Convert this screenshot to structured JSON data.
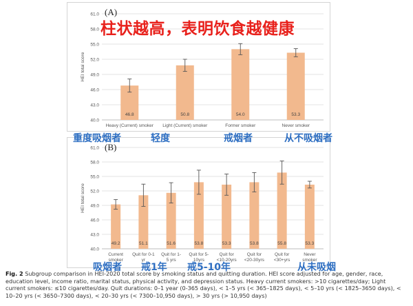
{
  "overlay_title": "柱状越高，表明饮食越健康",
  "annotations_a": [
    "重度吸烟者",
    "轻度",
    "戒烟者",
    "从不吸烟者"
  ],
  "annotations_b": [
    "吸烟者",
    "戒1年",
    "戒5-10年",
    "从未吸烟"
  ],
  "caption": {
    "label": "Fig. 2",
    "text": "Subgroup comparison in HEI-2020 total score by smoking status and quitting duration. HEI score adjusted for age, gender, race, education level, income ratio, marital status, physical activity, and depression status. Heavy current smokers: >10 cigarettes/day; Light current smokers: ≤10 cigarettes/day. Quit durations: 0–1 year (0-365 days), < 1–5 yrs (< 365–1825 days), < 5–10 yrs (< 1825–3650 days), < 10–20 yrs (< 3650–7300 days), < 20–30 yrs (< 7300–10,950 days), > 30 yrs (> 10,950 days)"
  },
  "colors": {
    "bar": "#f2b98e",
    "error": "#555555",
    "grid": "#e3e3e3"
  },
  "chart_data": [
    {
      "type": "bar",
      "panel": "(A)",
      "ylabel": "HEI total score",
      "ylim": [
        40,
        61
      ],
      "yticks": [
        "40.0",
        "43.0",
        "46.0",
        "49.0",
        "52.0",
        "55.0",
        "58.0",
        "61.0"
      ],
      "categories": [
        "Heavy (Current) smoker",
        "Light (Current) smoker",
        "Former smoker",
        "Never smoker"
      ],
      "values": [
        46.8,
        50.8,
        54.0,
        53.3
      ],
      "value_labels": [
        "46.8",
        "50.8",
        "54.0",
        "53.3"
      ],
      "error": [
        1.3,
        1.2,
        1.1,
        0.8
      ]
    },
    {
      "type": "bar",
      "panel": "(B)",
      "ylabel": "HEI total score",
      "ylim": [
        40,
        61
      ],
      "yticks": [
        "40.0",
        "43.0",
        "46.0",
        "49.0",
        "52.0",
        "55.0",
        "58.0",
        "61.0"
      ],
      "categories": [
        [
          "Current",
          "smoker"
        ],
        [
          "Quit for 0-1",
          "yr"
        ],
        [
          "Quit for 1-",
          "5 yrs"
        ],
        [
          "Quit for 5-",
          "10yrs"
        ],
        [
          "Quit for",
          "<10-20yrs"
        ],
        [
          "Quit for",
          "<20-30yrs"
        ],
        [
          "Quit for",
          "<30+yrs"
        ],
        [
          "Never",
          "smoker"
        ]
      ],
      "values": [
        49.2,
        51.1,
        51.6,
        53.8,
        53.3,
        53.8,
        55.8,
        53.3
      ],
      "value_labels": [
        "49.2",
        "51.1",
        "51.6",
        "53.8",
        "53.3",
        "53.8",
        "55.8",
        "53.3"
      ],
      "error": [
        1.0,
        2.3,
        2.1,
        2.5,
        2.2,
        2.0,
        2.4,
        0.7
      ]
    }
  ]
}
